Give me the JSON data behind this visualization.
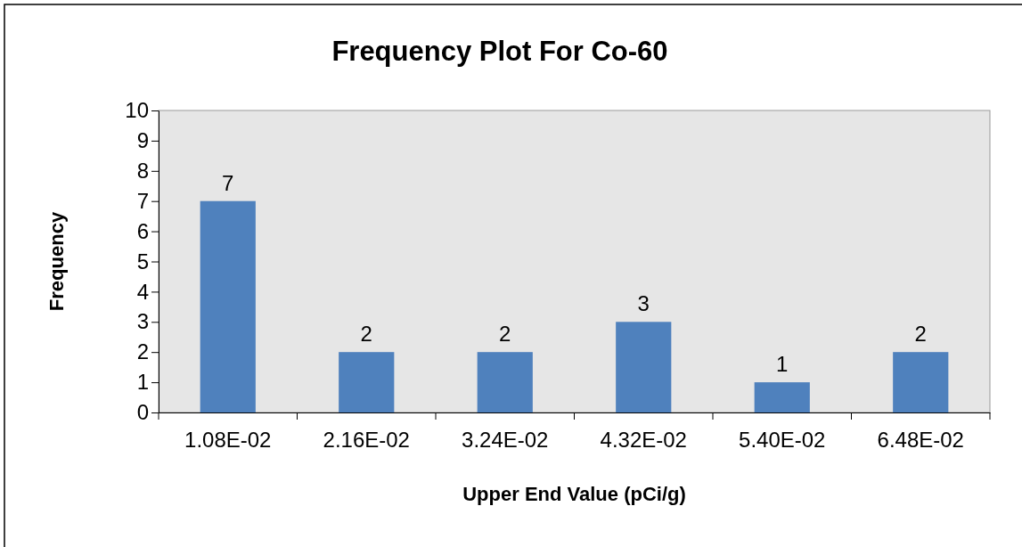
{
  "chart_data": {
    "type": "bar",
    "title": "Frequency Plot For Co-60",
    "xlabel": "Upper End Value (pCi/g)",
    "ylabel": "Frequency",
    "categories": [
      "1.08E-02",
      "2.16E-02",
      "3.24E-02",
      "4.32E-02",
      "5.40E-02",
      "6.48E-02"
    ],
    "values": [
      7,
      2,
      2,
      3,
      1,
      2
    ],
    "color": "#4f81bd",
    "ylim": [
      0,
      10
    ],
    "yticks": [
      0,
      1,
      2,
      3,
      4,
      5,
      6,
      7,
      8,
      9,
      10
    ],
    "data_labels": true
  }
}
